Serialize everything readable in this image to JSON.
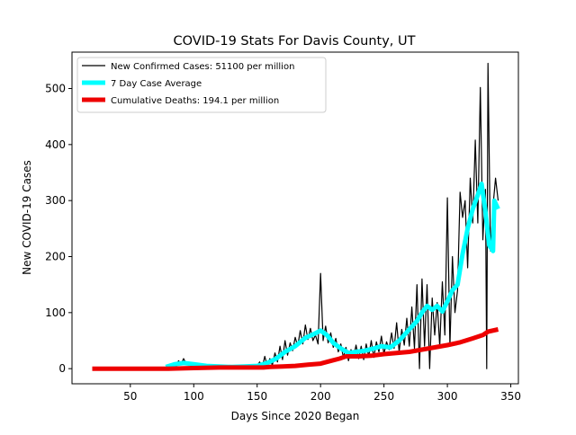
{
  "chart_data": {
    "type": "line",
    "title": "COVID-19 Stats For Davis County, UT",
    "xlabel": "Days Since 2020 Began",
    "ylabel": "New COVID-19 Cases",
    "xlim": [
      4,
      356
    ],
    "ylim": [
      -27,
      565
    ],
    "xticks": [
      50,
      100,
      150,
      200,
      250,
      300,
      350
    ],
    "yticks": [
      0,
      100,
      200,
      300,
      400,
      500
    ],
    "grid": false,
    "legend_position": "top-left",
    "series": [
      {
        "name": "New Confirmed Cases: 51100 per million",
        "color": "#000000",
        "points": [
          [
            20,
            0
          ],
          [
            40,
            0
          ],
          [
            60,
            0
          ],
          [
            78,
            0
          ],
          [
            80,
            2
          ],
          [
            82,
            6
          ],
          [
            84,
            10
          ],
          [
            86,
            3
          ],
          [
            88,
            14
          ],
          [
            90,
            8
          ],
          [
            92,
            18
          ],
          [
            94,
            9
          ],
          [
            96,
            12
          ],
          [
            98,
            4
          ],
          [
            100,
            10
          ],
          [
            103,
            6
          ],
          [
            106,
            3
          ],
          [
            110,
            5
          ],
          [
            115,
            2
          ],
          [
            120,
            6
          ],
          [
            125,
            3
          ],
          [
            130,
            1
          ],
          [
            135,
            5
          ],
          [
            140,
            3
          ],
          [
            145,
            6
          ],
          [
            150,
            4
          ],
          [
            152,
            12
          ],
          [
            154,
            2
          ],
          [
            156,
            22
          ],
          [
            158,
            5
          ],
          [
            160,
            18
          ],
          [
            162,
            6
          ],
          [
            164,
            28
          ],
          [
            166,
            12
          ],
          [
            168,
            40
          ],
          [
            170,
            16
          ],
          [
            172,
            50
          ],
          [
            174,
            24
          ],
          [
            176,
            46
          ],
          [
            178,
            32
          ],
          [
            180,
            56
          ],
          [
            182,
            40
          ],
          [
            184,
            68
          ],
          [
            186,
            44
          ],
          [
            188,
            78
          ],
          [
            190,
            52
          ],
          [
            192,
            72
          ],
          [
            194,
            50
          ],
          [
            196,
            60
          ],
          [
            198,
            44
          ],
          [
            200,
            170
          ],
          [
            202,
            50
          ],
          [
            204,
            76
          ],
          [
            206,
            46
          ],
          [
            208,
            64
          ],
          [
            210,
            38
          ],
          [
            212,
            54
          ],
          [
            214,
            30
          ],
          [
            216,
            44
          ],
          [
            218,
            20
          ],
          [
            220,
            38
          ],
          [
            222,
            14
          ],
          [
            224,
            34
          ],
          [
            226,
            20
          ],
          [
            228,
            42
          ],
          [
            230,
            18
          ],
          [
            232,
            40
          ],
          [
            234,
            16
          ],
          [
            236,
            44
          ],
          [
            238,
            22
          ],
          [
            240,
            50
          ],
          [
            242,
            20
          ],
          [
            244,
            48
          ],
          [
            246,
            30
          ],
          [
            248,
            58
          ],
          [
            250,
            26
          ],
          [
            252,
            48
          ],
          [
            254,
            34
          ],
          [
            256,
            64
          ],
          [
            258,
            36
          ],
          [
            260,
            82
          ],
          [
            262,
            30
          ],
          [
            264,
            70
          ],
          [
            266,
            42
          ],
          [
            268,
            90
          ],
          [
            270,
            40
          ],
          [
            272,
            110
          ],
          [
            274,
            36
          ],
          [
            276,
            150
          ],
          [
            278,
            0
          ],
          [
            280,
            160
          ],
          [
            282,
            40
          ],
          [
            284,
            150
          ],
          [
            286,
            0
          ],
          [
            288,
            126
          ],
          [
            290,
            60
          ],
          [
            292,
            118
          ],
          [
            294,
            40
          ],
          [
            296,
            155
          ],
          [
            298,
            60
          ],
          [
            300,
            305
          ],
          [
            302,
            40
          ],
          [
            304,
            200
          ],
          [
            306,
            100
          ],
          [
            308,
            140
          ],
          [
            310,
            315
          ],
          [
            312,
            270
          ],
          [
            314,
            300
          ],
          [
            316,
            180
          ],
          [
            318,
            340
          ],
          [
            320,
            260
          ],
          [
            322,
            408
          ],
          [
            324,
            260
          ],
          [
            326,
            502
          ],
          [
            328,
            230
          ],
          [
            330,
            320
          ],
          [
            331,
            0
          ],
          [
            332,
            545
          ],
          [
            334,
            210
          ],
          [
            336,
            290
          ],
          [
            338,
            340
          ],
          [
            340,
            300
          ]
        ]
      },
      {
        "name": "7 Day Case Average",
        "color": "#00FFFF",
        "points": [
          [
            78,
            3
          ],
          [
            85,
            8
          ],
          [
            92,
            10
          ],
          [
            100,
            8
          ],
          [
            110,
            5
          ],
          [
            120,
            4
          ],
          [
            130,
            3
          ],
          [
            140,
            4
          ],
          [
            150,
            5
          ],
          [
            158,
            10
          ],
          [
            165,
            18
          ],
          [
            172,
            30
          ],
          [
            180,
            40
          ],
          [
            188,
            55
          ],
          [
            195,
            62
          ],
          [
            200,
            68
          ],
          [
            205,
            60
          ],
          [
            210,
            46
          ],
          [
            216,
            36
          ],
          [
            222,
            28
          ],
          [
            228,
            30
          ],
          [
            235,
            32
          ],
          [
            242,
            36
          ],
          [
            248,
            40
          ],
          [
            255,
            38
          ],
          [
            262,
            50
          ],
          [
            270,
            70
          ],
          [
            276,
            85
          ],
          [
            280,
            100
          ],
          [
            284,
            112
          ],
          [
            288,
            105
          ],
          [
            292,
            112
          ],
          [
            296,
            102
          ],
          [
            300,
            120
          ],
          [
            304,
            140
          ],
          [
            308,
            150
          ],
          [
            312,
            205
          ],
          [
            316,
            250
          ],
          [
            320,
            285
          ],
          [
            324,
            310
          ],
          [
            327,
            330
          ],
          [
            330,
            280
          ],
          [
            333,
            220
          ],
          [
            336,
            210
          ],
          [
            337,
            300
          ],
          [
            340,
            285
          ]
        ]
      },
      {
        "name": "Cumulative Deaths: 194.1 per million",
        "color": "#EE0000",
        "points": [
          [
            20,
            0
          ],
          [
            60,
            0
          ],
          [
            80,
            0
          ],
          [
            100,
            1
          ],
          [
            120,
            2
          ],
          [
            140,
            2
          ],
          [
            155,
            2
          ],
          [
            160,
            3
          ],
          [
            170,
            4
          ],
          [
            180,
            5
          ],
          [
            190,
            7
          ],
          [
            200,
            9
          ],
          [
            205,
            12
          ],
          [
            210,
            15
          ],
          [
            215,
            18
          ],
          [
            220,
            22
          ],
          [
            230,
            22
          ],
          [
            240,
            23
          ],
          [
            250,
            26
          ],
          [
            260,
            28
          ],
          [
            270,
            30
          ],
          [
            280,
            34
          ],
          [
            290,
            38
          ],
          [
            300,
            42
          ],
          [
            310,
            47
          ],
          [
            320,
            54
          ],
          [
            328,
            60
          ],
          [
            332,
            66
          ],
          [
            340,
            70
          ]
        ]
      }
    ]
  }
}
